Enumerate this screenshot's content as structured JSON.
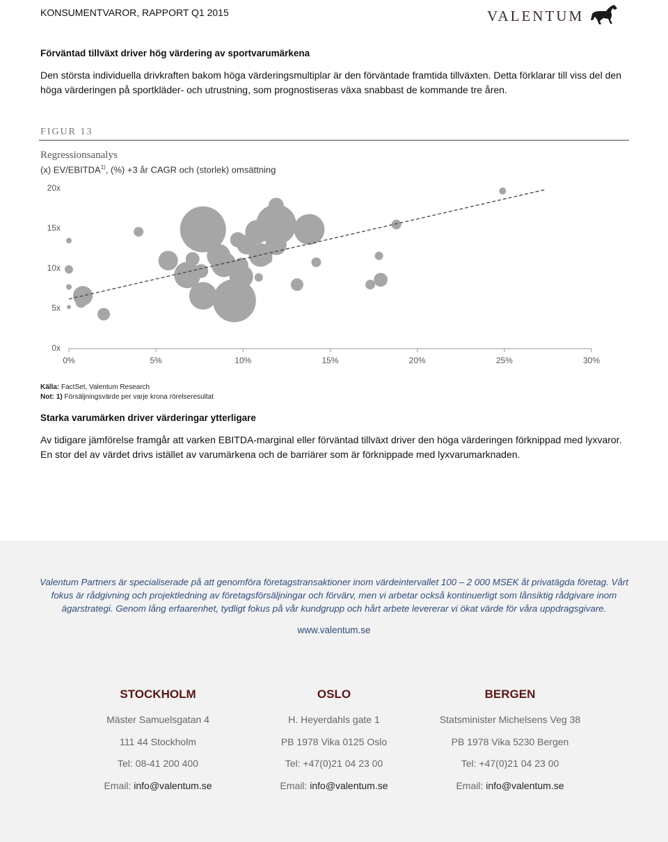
{
  "header": {
    "title": "KONSUMENTVAROR, RAPPORT Q1 2015",
    "logo": "VALENTUM"
  },
  "sections": [
    {
      "heading": "Förväntad tillväxt driver hög värdering av sportvarumärkena",
      "paragraph": "Den största individuella drivkraften bakom höga värderingsmultiplar är den förväntade framtida tillväxten. Detta förklarar till viss del den höga värderingen på sportkläder- och utrustning, som prognostiseras växa snabbast de kommande tre åren."
    },
    {
      "heading": "Starka varumärken driver värderingar ytterligare",
      "paragraph": "Av tidigare jämförelse framgår att varken EBITDA-marginal eller förväntad tillväxt driver den höga värderingen förknippad med lyxvaror. En stor del av värdet drivs istället av varumärkena och de barriärer som är förknippade med lyxvarumarknaden."
    }
  ],
  "figure": {
    "label": "FIGUR 13",
    "title": "Regressionsanalys",
    "subtitle": "(x) EV/EBITDA",
    "subtitle_sup": "1)",
    "subtitle_rest": ", (%) +3 år CAGR och (storlek) omsättning",
    "source_label": "Källa:",
    "source": "FactSet, Valentum Research",
    "note_label": "Not: 1)",
    "note": "Försäljningsvärde per varje krona rörelseresultat"
  },
  "chart_data": {
    "type": "bubble",
    "color": "#a6a6a6",
    "x": [
      24.9,
      18.8,
      4.0,
      7.7,
      11.9,
      11.9,
      13.8,
      10.8,
      9.7,
      10.2,
      11.9,
      8.6,
      11.0,
      5.7,
      7.1,
      8.9,
      9.9,
      14.2,
      17.8,
      6.8,
      7.6,
      9.9,
      9.5,
      7.7,
      13.1,
      10.9,
      17.9,
      17.3,
      0.8,
      0.7,
      2.0,
      0.0,
      0.0,
      0.0,
      0.0,
      11.4
    ],
    "y": [
      19.7,
      15.5,
      14.6,
      14.9,
      17.9,
      15.5,
      14.9,
      14.6,
      13.6,
      13.0,
      13.0,
      11.6,
      11.7,
      11.0,
      11.2,
      10.5,
      10.5,
      10.8,
      11.6,
      9.2,
      9.7,
      9.0,
      6.0,
      6.6,
      8.0,
      8.9,
      8.6,
      8.0,
      6.6,
      5.8,
      4.3,
      13.5,
      9.9,
      7.7,
      5.2,
      11.2
    ],
    "size": [
      2.8,
      5.4,
      5.4,
      121,
      13.4,
      93,
      54,
      32,
      13.4,
      22,
      25,
      32,
      32,
      22,
      11,
      36,
      11,
      5.4,
      4,
      40,
      11,
      32,
      107,
      44,
      9,
      4,
      11,
      5.4,
      22,
      7.1,
      9,
      1.8,
      4,
      1.8,
      1,
      5.4
    ],
    "trendline": {
      "x": [
        0,
        27.4
      ],
      "y": [
        6.2,
        19.9
      ],
      "color": "#444444"
    },
    "xlim": [
      0,
      30
    ],
    "ylim": [
      0,
      20
    ],
    "xticks": [
      {
        "value": 0,
        "label": "0%"
      },
      {
        "value": 5,
        "label": "5%"
      },
      {
        "value": 10,
        "label": "10%"
      },
      {
        "value": 15,
        "label": "15%"
      },
      {
        "value": 20,
        "label": "20%"
      },
      {
        "value": 25,
        "label": "25%"
      },
      {
        "value": 30,
        "label": "30%"
      }
    ],
    "yticks": [
      {
        "value": 0,
        "label": "0x"
      },
      {
        "value": 5,
        "label": "5x"
      },
      {
        "value": 10,
        "label": "10x"
      },
      {
        "value": 15,
        "label": "15x"
      },
      {
        "value": 20,
        "label": "20x"
      }
    ],
    "grid": false
  },
  "footer": {
    "about": "Valentum Partners är specialiserade på att genomföra företagstransaktioner inom värdeintervallet 100 – 2 000 MSEK åt privatägda företag. Vårt fokus är rådgivning och projektledning av företagsförsäljningar och förvärv, men vi arbetar också kontinuerligt som lånsiktig rådgivare inom ägarstrategi. Genom lång erfaarenhet, tydligt fokus på vår kundgrupp och hårt arbete levererar vi ökat värde för våra uppdragsgivare.",
    "website": "www.valentum.se",
    "offices": [
      {
        "city": "STOCKHOLM",
        "lines": [
          "Mäster Samuelsgatan 4",
          "111 44 Stockholm",
          "Tel: 08-41 200 400"
        ],
        "email_label": "Email:",
        "email": "info@valentum.se"
      },
      {
        "city": "OSLO",
        "lines": [
          "H. Heyerdahls gate 1",
          "PB 1978 Vika 0125 Oslo",
          "Tel: +47(0)21 04 23 00"
        ],
        "email_label": "Email:",
        "email": "info@valentum.se"
      },
      {
        "city": "BERGEN",
        "lines": [
          "Statsminister Michelsens Veg 38",
          "PB 1978 Vika 5230 Bergen",
          "Tel: +47(0)21 04 23 00"
        ],
        "email_label": "Email:",
        "email": "info@valentum.se"
      }
    ]
  }
}
